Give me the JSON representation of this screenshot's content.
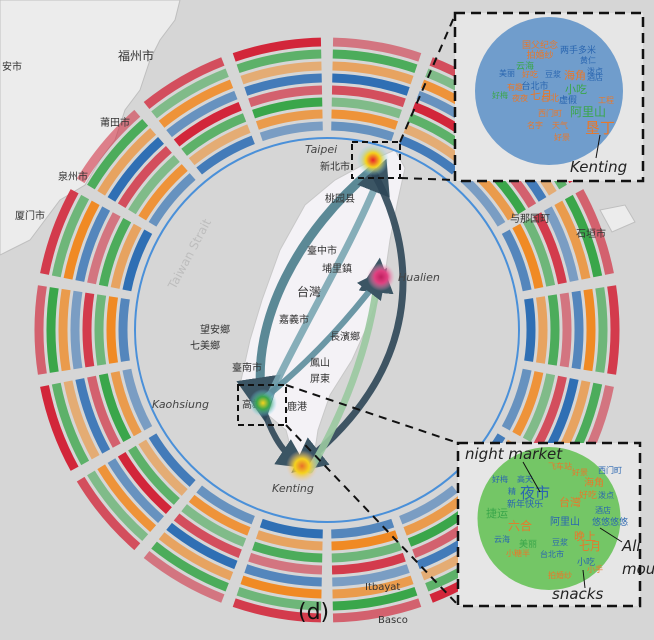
{
  "panel_label": "(d)",
  "map": {
    "cities_china": [
      "福州市",
      "莆田市",
      "泉州市",
      "厦门市",
      "安市"
    ],
    "cities_taiwan": [
      "新北市",
      "桃园县",
      "臺中市",
      "埔里鎮",
      "台灣",
      "嘉義市",
      "長濱鄉",
      "臺南市",
      "高雄",
      "鳳山",
      "鹿港",
      "屏東"
    ],
    "islands": [
      "望安鄉",
      "七美鄉",
      "与那国町",
      "石垣市",
      "Itbayat",
      "Basco",
      "Taiwan Strait"
    ],
    "places": {
      "taipei": "Taipei",
      "hualien": "Hualien",
      "kaohsiung": "Kaohsiung",
      "kenting": "Kenting"
    }
  },
  "insets": {
    "top": {
      "label": "Kenting",
      "words": [
        {
          "t": "国父纪念",
          "c": "#e8782a"
        },
        {
          "t": "两手多米",
          "c": "#2a66b0"
        },
        {
          "t": "拍婚纱",
          "c": "#e8782a"
        },
        {
          "t": "黄仁",
          "c": "#2a66b0"
        },
        {
          "t": "云海",
          "c": "#3aa64a"
        },
        {
          "t": "泼点",
          "c": "#2a66b0"
        },
        {
          "t": "美丽",
          "c": "#2a66b0"
        },
        {
          "t": "好吃",
          "c": "#e8782a"
        },
        {
          "t": "豆浆",
          "c": "#2a66b0"
        },
        {
          "t": "海角",
          "c": "#e8782a"
        },
        {
          "t": "酒店",
          "c": "#2a66b0"
        },
        {
          "t": "有趣",
          "c": "#e8782a"
        },
        {
          "t": "台北市",
          "c": "#2a66b0"
        },
        {
          "t": "小吃",
          "c": "#3aa64a"
        },
        {
          "t": "好梅",
          "c": "#3aa64a"
        },
        {
          "t": "七月",
          "c": "#e8782a"
        },
        {
          "t": "夜夜",
          "c": "#e8782a"
        },
        {
          "t": "台北",
          "c": "#e8782a"
        },
        {
          "t": "虚假",
          "c": "#2a66b0"
        },
        {
          "t": "工程",
          "c": "#e8782a"
        },
        {
          "t": "阿里山",
          "c": "#3aa64a"
        },
        {
          "t": "西门町",
          "c": "#e8782a"
        },
        {
          "t": "名字",
          "c": "#e8782a"
        },
        {
          "t": "天气",
          "c": "#e8782a"
        },
        {
          "t": "垦丁",
          "c": "#e8782a"
        },
        {
          "t": "好景",
          "c": "#e8782a"
        }
      ]
    },
    "bottom": {
      "label_night": "night market",
      "label_ali": "Ali",
      "label_mou": "mou",
      "label_snacks": "snacks",
      "words": [
        {
          "t": "西门町",
          "c": "#2a66b0"
        },
        {
          "t": "飞车站",
          "c": "#e8782a"
        },
        {
          "t": "好梅",
          "c": "#2a66b0"
        },
        {
          "t": "高天",
          "c": "#2a66b0"
        },
        {
          "t": "好景",
          "c": "#e8782a"
        },
        {
          "t": "夜市",
          "c": "#2a66b0"
        },
        {
          "t": "海角",
          "c": "#e8782a"
        },
        {
          "t": "精",
          "c": "#2a66b0"
        },
        {
          "t": "台灣",
          "c": "#e8782a"
        },
        {
          "t": "好吃",
          "c": "#e8782a"
        },
        {
          "t": "新年快乐",
          "c": "#2a66b0"
        },
        {
          "t": "泼点",
          "c": "#2a66b0"
        },
        {
          "t": "捷运",
          "c": "#3aa64a"
        },
        {
          "t": "酒店",
          "c": "#2a66b0"
        },
        {
          "t": "六合",
          "c": "#e8782a"
        },
        {
          "t": "阿里山",
          "c": "#2a66b0"
        },
        {
          "t": "悠悠悠悠",
          "c": "#2a66b0"
        },
        {
          "t": "云海",
          "c": "#2a66b0"
        },
        {
          "t": "美丽",
          "c": "#3aa64a"
        },
        {
          "t": "晚上",
          "c": "#e8782a"
        },
        {
          "t": "豆浆",
          "c": "#2a66b0"
        },
        {
          "t": "七月",
          "c": "#e8782a"
        },
        {
          "t": "小糖半",
          "c": "#e8782a"
        },
        {
          "t": "台北市",
          "c": "#2a66b0"
        },
        {
          "t": "小吃",
          "c": "#2a66b0"
        },
        {
          "t": "拍婚纱",
          "c": "#e8782a"
        },
        {
          "t": "小手",
          "c": "#e8782a"
        }
      ]
    }
  },
  "colors": {
    "red": "#d2263a",
    "green": "#3aa64a",
    "orange": "#f08a24",
    "blue": "#2f6fb4",
    "lightblue": "#4a90d9",
    "inset_top": "#5b8fc7",
    "inset_bottom": "#5fbf4f"
  }
}
